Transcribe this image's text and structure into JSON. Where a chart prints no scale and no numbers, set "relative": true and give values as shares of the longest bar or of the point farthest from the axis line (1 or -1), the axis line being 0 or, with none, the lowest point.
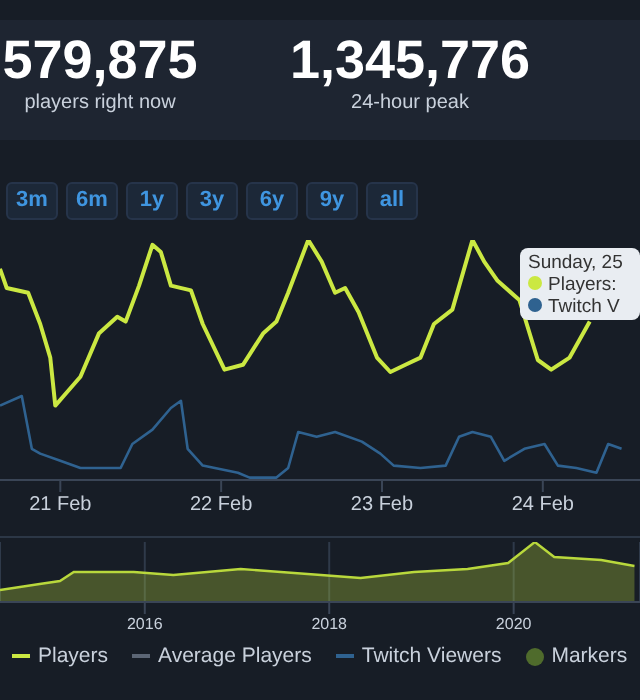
{
  "chart_data": [
    {
      "type": "other",
      "annotations": [
        "579,875",
        "players right now",
        "1,345,776",
        "24-hour peak",
        "3m",
        "6m",
        "1y",
        "3y",
        "6y",
        "9y",
        "all"
      ]
    },
    {
      "type": "line",
      "relative": true,
      "xlim": [
        "--02-20T15:00",
        "--02-24T14:30"
      ],
      "xticks": [
        {
          "value": "--02-21",
          "label": "21 Feb"
        },
        {
          "value": "--02-22",
          "label": "22 Feb"
        },
        {
          "value": "--02-23",
          "label": "23 Feb"
        },
        {
          "value": "--02-24",
          "label": "24 Feb"
        }
      ],
      "legend": "bottom",
      "marker": "none",
      "annotations": [
        "Sunday, 25",
        "Players:",
        "Twitch V"
      ],
      "series": [
        {
          "name": "Players",
          "color": "#cbe842",
          "x": [
            "--02-20T15:00",
            "--02-20T16:00",
            "--02-20T19:12",
            "--02-20T21:00",
            "--02-20T22:30",
            "--02-20T23:15",
            "--02-21T00:30",
            "--02-21T03:00",
            "--02-21T05:45",
            "--02-21T08:30",
            "--02-21T09:45",
            "--02-21T11:45",
            "--02-21T13:45",
            "--02-21T15:00",
            "--02-21T16:30",
            "--02-21T19:30",
            "--02-21T21:15",
            "--02-22T00:30",
            "--02-22T03:15",
            "--02-22T06:15",
            "--02-22T08:15",
            "--02-22T10:00",
            "--02-22T13:00",
            "--02-22T15:00",
            "--02-22T17:00",
            "--02-22T18:30",
            "--02-22T20:30",
            "--02-22T23:15",
            "--02-23T01:15",
            "--02-23T03:30",
            "--02-23T05:45",
            "--02-23T07:45",
            "--02-23T10:30",
            "--02-23T13:30",
            "--02-23T15:15",
            "--02-23T17:15",
            "--02-23T20:30",
            "--02-23T23:15",
            "--02-24T01:15",
            "--02-24T04:00",
            "--02-24T07:00"
          ],
          "values": [
            0.88,
            0.8,
            0.78,
            0.65,
            0.51,
            0.31,
            0.35,
            0.43,
            0.61,
            0.68,
            0.66,
            0.81,
            0.98,
            0.95,
            0.81,
            0.79,
            0.65,
            0.46,
            0.48,
            0.61,
            0.66,
            0.78,
            1.0,
            0.91,
            0.78,
            0.8,
            0.7,
            0.51,
            0.45,
            0.48,
            0.51,
            0.65,
            0.71,
            1.0,
            0.91,
            0.83,
            0.75,
            0.5,
            0.46,
            0.51,
            0.66
          ]
        },
        {
          "name": "Average Players",
          "color": "#5c6675"
        },
        {
          "name": "Twitch Viewers",
          "color": "#2f6290",
          "x": [
            "--02-20T15:00",
            "--02-20T18:15",
            "--02-20T19:45",
            "--02-20T21:00",
            "--02-21T00:00",
            "--02-21T03:00",
            "--02-21T09:00",
            "--02-21T10:45",
            "--02-21T13:45",
            "--02-21T16:30",
            "--02-21T18:00",
            "--02-21T19:00",
            "--02-21T21:15",
            "--02-22T02:30",
            "--02-22T04:15",
            "--02-22T08:15",
            "--02-22T10:00",
            "--02-22T11:30",
            "--02-22T14:15",
            "--02-22T17:00",
            "--02-22T21:00",
            "--02-22T23:45",
            "--02-23T01:45",
            "--02-23T05:45",
            "--02-23T09:30",
            "--02-23T11:30",
            "--02-23T13:30",
            "--02-23T16:15",
            "--02-23T18:15",
            "--02-23T21:15",
            "--02-24T00:15",
            "--02-24T02:15",
            "--02-24T05:00",
            "--02-24T08:00",
            "--02-24T09:45",
            "--02-24T11:45"
          ],
          "values": [
            0.31,
            0.35,
            0.13,
            0.11,
            0.08,
            0.05,
            0.05,
            0.15,
            0.21,
            0.3,
            0.33,
            0.13,
            0.06,
            0.03,
            0.01,
            0.01,
            0.05,
            0.2,
            0.18,
            0.2,
            0.16,
            0.11,
            0.06,
            0.05,
            0.06,
            0.18,
            0.2,
            0.18,
            0.08,
            0.13,
            0.15,
            0.06,
            0.05,
            0.03,
            0.15,
            0.13
          ]
        },
        {
          "name": "Markers",
          "color": "#4f6b2c"
        }
      ]
    },
    {
      "type": "area",
      "relative": true,
      "xlim": [
        2014.43,
        2021.37
      ],
      "xticks": [
        2016,
        2018,
        2020
      ],
      "grid": "x",
      "color": "#b9d83c",
      "x": [
        2014.43,
        2014.86,
        2015.08,
        2015.23,
        2015.88,
        2016.31,
        2017.04,
        2017.91,
        2018.34,
        2018.92,
        2019.5,
        2019.94,
        2020.23,
        2020.44,
        2020.95,
        2021.31
      ],
      "values": [
        0.2,
        0.3,
        0.35,
        0.5,
        0.5,
        0.45,
        0.55,
        0.45,
        0.4,
        0.5,
        0.55,
        0.65,
        1.0,
        0.75,
        0.7,
        0.6
      ]
    }
  ]
}
